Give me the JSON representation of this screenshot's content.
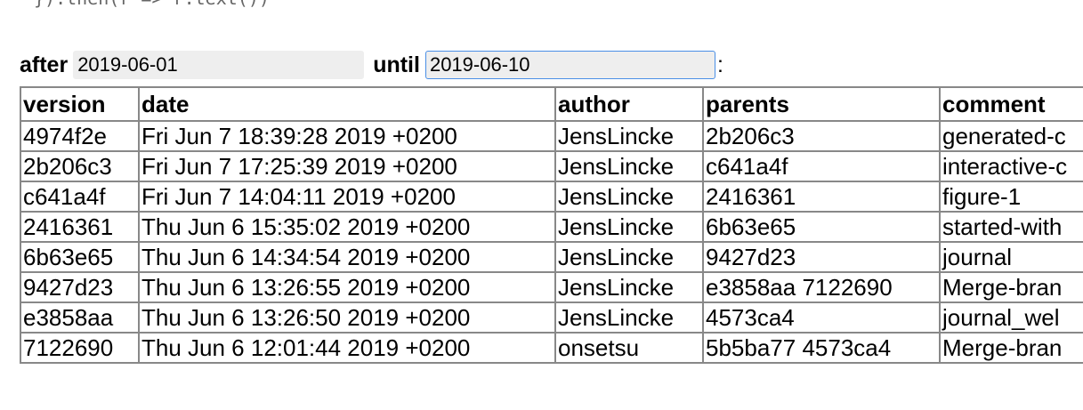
{
  "code_line": "}).then(r => r.text())",
  "filter": {
    "after_label": "after",
    "after_value": "2019-06-01",
    "until_label": "until",
    "until_value": "2019-06-10",
    "suffix": ":"
  },
  "table": {
    "headers": [
      "version",
      "date",
      "author",
      "parents",
      "comment"
    ],
    "rows": [
      [
        "4974f2e",
        "Fri Jun 7 18:39:28 2019 +0200",
        "JensLincke",
        "2b206c3",
        "generated-c"
      ],
      [
        "2b206c3",
        "Fri Jun 7 17:25:39 2019 +0200",
        "JensLincke",
        "c641a4f",
        "interactive-c"
      ],
      [
        "c641a4f",
        "Fri Jun 7 14:04:11 2019 +0200",
        "JensLincke",
        "2416361",
        "figure-1"
      ],
      [
        "2416361",
        "Thu Jun 6 15:35:02 2019 +0200",
        "JensLincke",
        "6b63e65",
        "started-with"
      ],
      [
        "6b63e65",
        "Thu Jun 6 14:34:54 2019 +0200",
        "JensLincke",
        "9427d23",
        "journal"
      ],
      [
        "9427d23",
        "Thu Jun 6 13:26:55 2019 +0200",
        "JensLincke",
        "e3858aa 7122690",
        "Merge-bran"
      ],
      [
        "e3858aa",
        "Thu Jun 6 13:26:50 2019 +0200",
        "JensLincke",
        "4573ca4",
        "journal_wel"
      ],
      [
        "7122690",
        "Thu Jun 6 12:01:44 2019 +0200",
        "onsetsu",
        "5b5ba77 4573ca4",
        "Merge-bran"
      ]
    ]
  }
}
